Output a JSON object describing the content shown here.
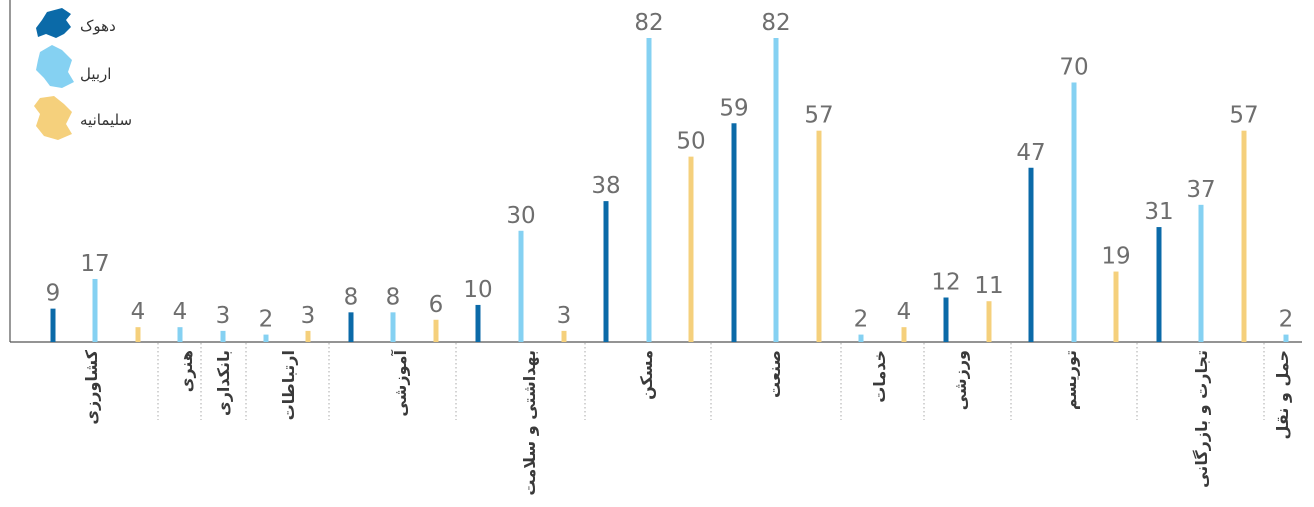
{
  "chart_data": {
    "type": "bar",
    "categories": [
      "کشاورزی",
      "هنری",
      "بانکداری",
      "ارتباطات",
      "آموزشی",
      "بهداشتی و سلامت",
      "مسکن",
      "صنعت",
      "خدمات",
      "ورزشی",
      "توریسم",
      "تجارت و بازرگانی",
      "حمل و نقل"
    ],
    "series": [
      {
        "name": "دهوک",
        "color": "#0b6aa8"
      },
      {
        "name": "اربیل",
        "color": "#85d1f2"
      },
      {
        "name": "سلیمانیه",
        "color": "#f5d07c"
      }
    ],
    "bars": [
      {
        "category": 0,
        "series": 0,
        "value": 9
      },
      {
        "category": 0,
        "series": 1,
        "value": 17
      },
      {
        "category": 0,
        "series": 2,
        "value": 4
      },
      {
        "category": 1,
        "series": 1,
        "value": 4
      },
      {
        "category": 2,
        "series": 1,
        "value": 3
      },
      {
        "category": 3,
        "series": 1,
        "value": 2
      },
      {
        "category": 3,
        "series": 2,
        "value": 3
      },
      {
        "category": 4,
        "series": 0,
        "value": 8
      },
      {
        "category": 4,
        "series": 1,
        "value": 8
      },
      {
        "category": 4,
        "series": 2,
        "value": 6
      },
      {
        "category": 5,
        "series": 0,
        "value": 10
      },
      {
        "category": 5,
        "series": 1,
        "value": 30
      },
      {
        "category": 5,
        "series": 2,
        "value": 3
      },
      {
        "category": 6,
        "series": 0,
        "value": 38
      },
      {
        "category": 6,
        "series": 1,
        "value": 82
      },
      {
        "category": 6,
        "series": 2,
        "value": 50
      },
      {
        "category": 7,
        "series": 0,
        "value": 59
      },
      {
        "category": 7,
        "series": 1,
        "value": 82
      },
      {
        "category": 7,
        "series": 2,
        "value": 57
      },
      {
        "category": 8,
        "series": 1,
        "value": 2
      },
      {
        "category": 8,
        "series": 2,
        "value": 4
      },
      {
        "category": 9,
        "series": 0,
        "value": 12
      },
      {
        "category": 9,
        "series": 2,
        "value": 11
      },
      {
        "category": 10,
        "series": 0,
        "value": 47
      },
      {
        "category": 10,
        "series": 1,
        "value": 70
      },
      {
        "category": 10,
        "series": 2,
        "value": 19
      },
      {
        "category": 11,
        "series": 0,
        "value": 31
      },
      {
        "category": 11,
        "series": 1,
        "value": 37
      },
      {
        "category": 11,
        "series": 2,
        "value": 57
      },
      {
        "category": 12,
        "series": 1,
        "value": 2
      }
    ],
    "ylim": [
      0,
      82
    ],
    "grid": false,
    "legend": "top-left",
    "title": "",
    "xlabel": "",
    "ylabel": ""
  }
}
